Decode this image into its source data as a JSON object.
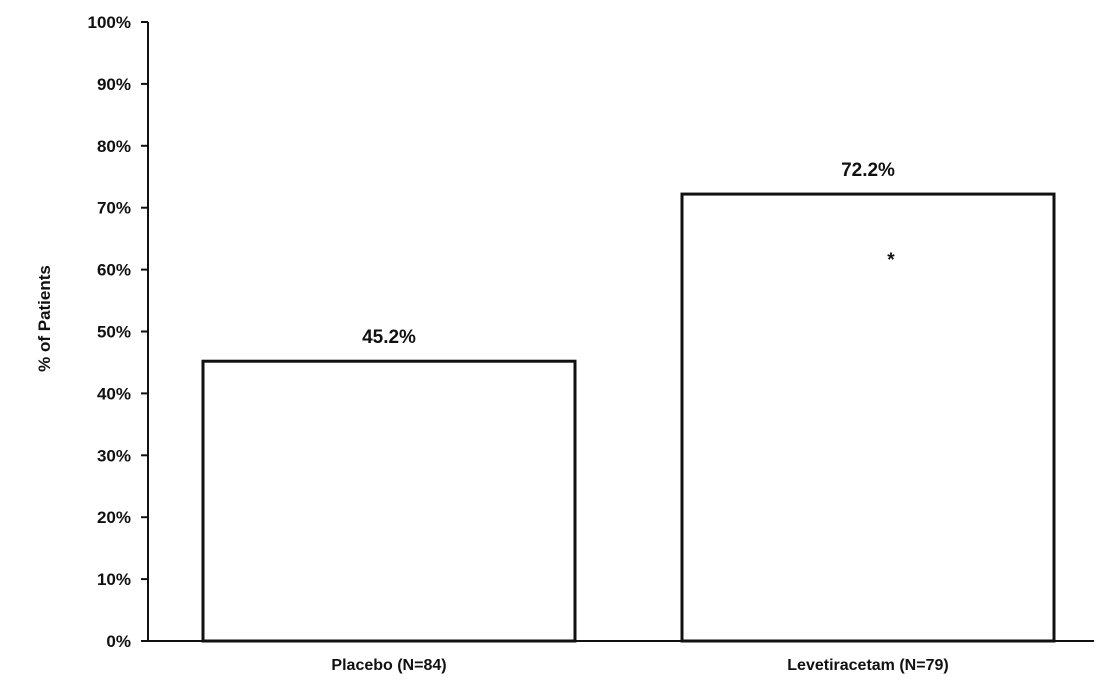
{
  "chart_data": {
    "type": "bar",
    "title": "",
    "xlabel": "",
    "ylabel": "% of Patients",
    "ylim": [
      0,
      100
    ],
    "y_ticks": [
      "0%",
      "10%",
      "20%",
      "30%",
      "40%",
      "50%",
      "60%",
      "70%",
      "80%",
      "90%",
      "100%"
    ],
    "y_tick_values": [
      0,
      10,
      20,
      30,
      40,
      50,
      60,
      70,
      80,
      90,
      100
    ],
    "categories": [
      "Placebo (N=84)",
      "Levetiracetam (N=79)"
    ],
    "values": [
      45.2,
      72.2
    ],
    "data_labels": [
      "45.2%",
      "72.2%"
    ],
    "annotations": [
      {
        "category_index": 1,
        "text": "*"
      }
    ],
    "grid": false,
    "legend": "none",
    "bar_fill": "#ffffff",
    "bar_stroke": "#111111"
  }
}
